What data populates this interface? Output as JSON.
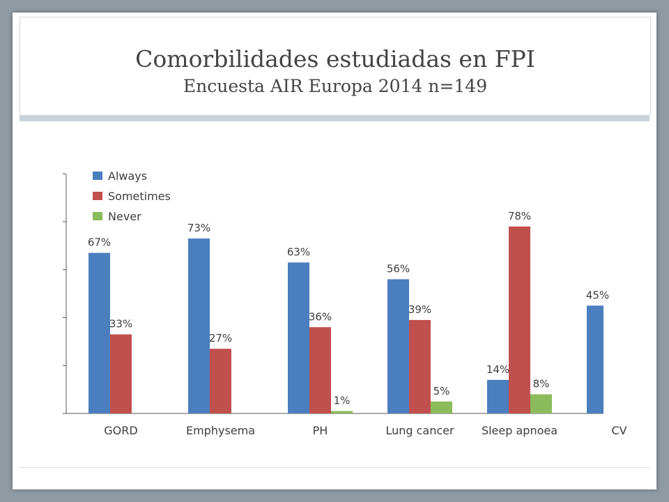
{
  "title": "Comorbilidades estudiadas en FPI",
  "subtitle": "Encuesta AIR Europa 2014 n=149",
  "colors": {
    "Always": "#4a7ebf",
    "Sometimes": "#c0504d",
    "Never": "#8cbb5c"
  },
  "chart_data": {
    "type": "bar",
    "categories": [
      "GORD",
      "Emphysema",
      "PH",
      "Lung cancer",
      "Sleep apnoea",
      "CV"
    ],
    "series": [
      {
        "name": "Always",
        "values": [
          67,
          73,
          63,
          56,
          14,
          45
        ],
        "labels": [
          "67%",
          "73%",
          "63%",
          "56%",
          "14%",
          "45%"
        ]
      },
      {
        "name": "Sometimes",
        "values": [
          33,
          27,
          36,
          39,
          78,
          null
        ],
        "labels": [
          "33%",
          "27%",
          "36%",
          "39%",
          "78%",
          null
        ]
      },
      {
        "name": "Never",
        "values": [
          null,
          null,
          1,
          5,
          8,
          null
        ],
        "labels": [
          null,
          null,
          "1%",
          "5%",
          "8%",
          null
        ]
      }
    ],
    "ylim": [
      0,
      100
    ],
    "grid": false,
    "legend": "top-left"
  }
}
